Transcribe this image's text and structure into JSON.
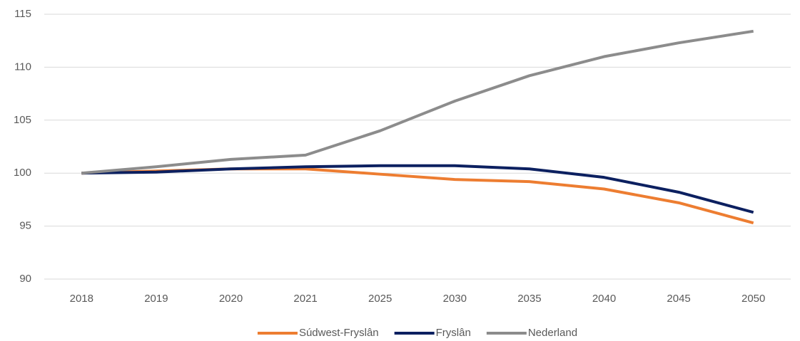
{
  "chart_data": {
    "type": "line",
    "categories": [
      "2018",
      "2019",
      "2020",
      "2021",
      "2025",
      "2030",
      "2035",
      "2040",
      "2045",
      "2050"
    ],
    "series": [
      {
        "name": "Súdwest-Fryslân",
        "color": "#ed7d31",
        "values": [
          100,
          100.2,
          100.4,
          100.4,
          99.9,
          99.4,
          99.2,
          98.5,
          97.2,
          95.3
        ]
      },
      {
        "name": "Fryslân",
        "color": "#0c2060",
        "values": [
          100,
          100.1,
          100.4,
          100.6,
          100.7,
          100.7,
          100.4,
          99.6,
          98.2,
          96.3
        ]
      },
      {
        "name": "Nederland",
        "color": "#8c8c8c",
        "values": [
          100,
          100.6,
          101.3,
          101.7,
          104,
          106.8,
          109.2,
          111,
          112.3,
          113.4
        ]
      }
    ],
    "ylim": [
      90,
      115
    ],
    "yticks": [
      90,
      95,
      100,
      105,
      110,
      115
    ],
    "grid": true,
    "legend": "bottom"
  }
}
